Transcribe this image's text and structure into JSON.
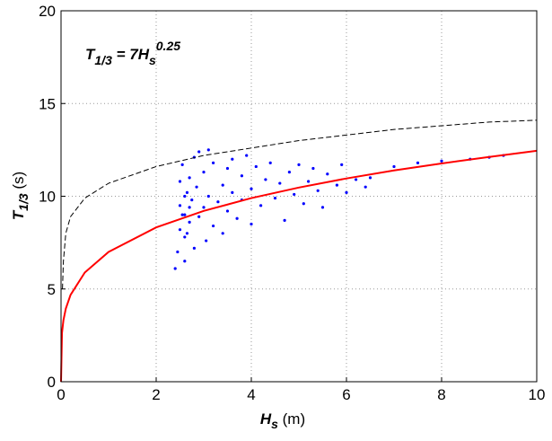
{
  "chart_data": {
    "type": "scatter",
    "annotation": [
      "T",
      "1/3",
      " = 7H",
      "s",
      "0.25"
    ],
    "xlabel": [
      "H",
      "s",
      " (m)"
    ],
    "ylabel": [
      "T",
      "1/3",
      " (s)"
    ],
    "xlim": [
      0,
      10
    ],
    "xticks": [
      0,
      2,
      4,
      6,
      8,
      10
    ],
    "ylim": [
      0,
      20
    ],
    "yticks": [
      0,
      5,
      10,
      15,
      20
    ],
    "grid": true,
    "series": [
      {
        "type": "scatter",
        "color": "#0000ff",
        "x": [
          2.4,
          2.45,
          2.5,
          2.5,
          2.5,
          2.55,
          2.6,
          2.6,
          2.6,
          2.65,
          2.7,
          2.7,
          2.75,
          2.8,
          2.8,
          2.85,
          2.9,
          2.9,
          3.0,
          3.0,
          3.05,
          3.1,
          3.1,
          3.2,
          3.2,
          3.3,
          3.4,
          3.4,
          3.5,
          3.5,
          3.6,
          3.6,
          3.7,
          3.8,
          3.8,
          3.9,
          4.0,
          4.0,
          4.1,
          4.2,
          4.3,
          4.4,
          4.5,
          4.6,
          4.7,
          4.8,
          4.9,
          5.0,
          5.1,
          5.2,
          5.3,
          5.4,
          5.5,
          5.6,
          5.8,
          5.9,
          6.0,
          6.2,
          6.4,
          6.5,
          7.0,
          7.5,
          8.0,
          8.6,
          9.0,
          9.3,
          2.55,
          2.6,
          2.65,
          2.7
        ],
        "values": [
          6.1,
          7.0,
          8.2,
          9.5,
          10.8,
          11.7,
          6.5,
          7.8,
          9.0,
          10.2,
          11.0,
          8.6,
          9.8,
          7.2,
          12.1,
          10.5,
          8.9,
          12.4,
          9.4,
          11.3,
          7.6,
          12.5,
          10.0,
          8.4,
          11.8,
          9.7,
          10.6,
          8.0,
          11.5,
          9.2,
          12.0,
          10.2,
          8.8,
          11.1,
          9.8,
          12.2,
          10.4,
          8.5,
          11.6,
          9.5,
          10.9,
          11.8,
          9.9,
          10.7,
          8.7,
          11.3,
          10.1,
          11.7,
          9.6,
          10.8,
          11.5,
          10.3,
          9.4,
          11.2,
          10.6,
          11.7,
          10.2,
          10.9,
          10.5,
          11.0,
          11.6,
          11.8,
          11.9,
          12.0,
          12.1,
          12.2,
          9.0,
          10.0,
          8.0,
          9.4
        ]
      },
      {
        "type": "line",
        "color": "#000000",
        "dash": true,
        "x": [
          0.03,
          0.05,
          0.1,
          0.2,
          0.5,
          1,
          2,
          3,
          4,
          5,
          6,
          7,
          8,
          9,
          10
        ],
        "values": [
          5,
          6.5,
          8,
          8.9,
          9.9,
          10.7,
          11.6,
          12.2,
          12.6,
          13,
          13.3,
          13.6,
          13.8,
          14,
          14.1
        ]
      },
      {
        "type": "line",
        "color": "#ff0000",
        "dash": false,
        "x": [
          0,
          0.02,
          0.05,
          0.1,
          0.2,
          0.5,
          1,
          2,
          3,
          4,
          5,
          6,
          7,
          8,
          9,
          10
        ],
        "values": [
          0,
          2.63,
          3.31,
          3.94,
          4.68,
          5.89,
          7,
          8.32,
          9.21,
          9.9,
          10.47,
          10.96,
          11.39,
          11.77,
          12.12,
          12.45
        ]
      }
    ]
  }
}
